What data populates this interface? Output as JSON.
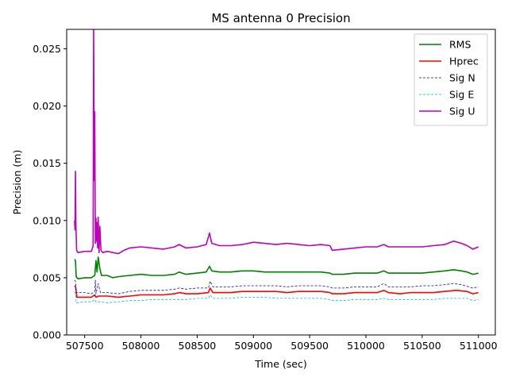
{
  "chart_data": {
    "type": "line",
    "title": "MS antenna 0 Precision",
    "xlabel": "Time (sec)",
    "ylabel": "Precision (m)",
    "xlim": [
      507340,
      511150
    ],
    "ylim": [
      0,
      0.0267
    ],
    "x_ticks": [
      {
        "value": 507500,
        "label": "507500"
      },
      {
        "value": 508000,
        "label": "508000"
      },
      {
        "value": 508500,
        "label": "508500"
      },
      {
        "value": 509000,
        "label": "509000"
      },
      {
        "value": 509500,
        "label": "509500"
      },
      {
        "value": 510000,
        "label": "510000"
      },
      {
        "value": 510500,
        "label": "510500"
      },
      {
        "value": 511000,
        "label": "511000"
      }
    ],
    "y_ticks": [
      {
        "value": 0.0,
        "label": "0.000"
      },
      {
        "value": 0.005,
        "label": "0.005"
      },
      {
        "value": 0.01,
        "label": "0.010"
      },
      {
        "value": 0.015,
        "label": "0.015"
      },
      {
        "value": 0.02,
        "label": "0.020"
      },
      {
        "value": 0.025,
        "label": "0.025"
      }
    ],
    "grid": false,
    "legend_position": "top-right",
    "series": [
      {
        "name": "RMS",
        "color": "#008000",
        "dash": "solid",
        "points": [
          [
            507410,
            0.0066
          ],
          [
            507418,
            0.0065
          ],
          [
            507425,
            0.0051
          ],
          [
            507440,
            0.0049
          ],
          [
            507500,
            0.005
          ],
          [
            507560,
            0.005
          ],
          [
            507590,
            0.0052
          ],
          [
            507600,
            0.0065
          ],
          [
            507610,
            0.0055
          ],
          [
            507620,
            0.0068
          ],
          [
            507635,
            0.0058
          ],
          [
            507650,
            0.0052
          ],
          [
            507700,
            0.0052
          ],
          [
            507750,
            0.005
          ],
          [
            507800,
            0.0051
          ],
          [
            507900,
            0.0052
          ],
          [
            508000,
            0.0053
          ],
          [
            508100,
            0.0052
          ],
          [
            508200,
            0.0052
          ],
          [
            508300,
            0.0053
          ],
          [
            508340,
            0.0055
          ],
          [
            508400,
            0.0053
          ],
          [
            508500,
            0.0054
          ],
          [
            508580,
            0.0055
          ],
          [
            508610,
            0.006
          ],
          [
            508630,
            0.0056
          ],
          [
            508700,
            0.0055
          ],
          [
            508800,
            0.0055
          ],
          [
            508900,
            0.0056
          ],
          [
            509000,
            0.0056
          ],
          [
            509100,
            0.0055
          ],
          [
            509200,
            0.0055
          ],
          [
            509300,
            0.0055
          ],
          [
            509400,
            0.0055
          ],
          [
            509500,
            0.0055
          ],
          [
            509600,
            0.0055
          ],
          [
            509680,
            0.0054
          ],
          [
            509700,
            0.0053
          ],
          [
            509800,
            0.0053
          ],
          [
            509900,
            0.0054
          ],
          [
            510000,
            0.0054
          ],
          [
            510100,
            0.0054
          ],
          [
            510160,
            0.0056
          ],
          [
            510200,
            0.0054
          ],
          [
            510300,
            0.0054
          ],
          [
            510400,
            0.0054
          ],
          [
            510500,
            0.0054
          ],
          [
            510600,
            0.0055
          ],
          [
            510700,
            0.0056
          ],
          [
            510780,
            0.0057
          ],
          [
            510850,
            0.0056
          ],
          [
            510900,
            0.0055
          ],
          [
            510950,
            0.0053
          ],
          [
            511000,
            0.0054
          ]
        ]
      },
      {
        "name": "Hprec",
        "color": "#ff0000",
        "dash": "solid",
        "points": [
          [
            507410,
            0.0043
          ],
          [
            507420,
            0.0042
          ],
          [
            507430,
            0.0033
          ],
          [
            507500,
            0.0033
          ],
          [
            507560,
            0.0033
          ],
          [
            507590,
            0.0035
          ],
          [
            507600,
            0.0033
          ],
          [
            507630,
            0.0034
          ],
          [
            507700,
            0.0034
          ],
          [
            507800,
            0.0033
          ],
          [
            507900,
            0.0034
          ],
          [
            508000,
            0.0035
          ],
          [
            508100,
            0.0035
          ],
          [
            508200,
            0.0035
          ],
          [
            508300,
            0.0036
          ],
          [
            508340,
            0.0037
          ],
          [
            508400,
            0.0036
          ],
          [
            508500,
            0.0036
          ],
          [
            508600,
            0.0037
          ],
          [
            508615,
            0.0041
          ],
          [
            508640,
            0.0037
          ],
          [
            508700,
            0.0037
          ],
          [
            508800,
            0.0037
          ],
          [
            508900,
            0.0038
          ],
          [
            509000,
            0.0038
          ],
          [
            509100,
            0.0038
          ],
          [
            509200,
            0.0038
          ],
          [
            509300,
            0.0037
          ],
          [
            509400,
            0.0038
          ],
          [
            509500,
            0.0038
          ],
          [
            509600,
            0.0038
          ],
          [
            509680,
            0.0037
          ],
          [
            509700,
            0.0036
          ],
          [
            509800,
            0.0036
          ],
          [
            509900,
            0.0037
          ],
          [
            510000,
            0.0037
          ],
          [
            510100,
            0.0037
          ],
          [
            510160,
            0.0039
          ],
          [
            510200,
            0.0037
          ],
          [
            510300,
            0.0036
          ],
          [
            510400,
            0.0037
          ],
          [
            510500,
            0.0037
          ],
          [
            510600,
            0.0037
          ],
          [
            510700,
            0.0038
          ],
          [
            510800,
            0.0039
          ],
          [
            510900,
            0.0038
          ],
          [
            510950,
            0.0036
          ],
          [
            511000,
            0.0037
          ]
        ]
      },
      {
        "name": "Sig N",
        "color": "#0000ff",
        "dash": "dashed",
        "points": [
          [
            507410,
            0.0048
          ],
          [
            507418,
            0.0047
          ],
          [
            507425,
            0.0037
          ],
          [
            507500,
            0.0037
          ],
          [
            507560,
            0.0036
          ],
          [
            507590,
            0.0038
          ],
          [
            507595,
            0.0048
          ],
          [
            507600,
            0.0036
          ],
          [
            507620,
            0.0045
          ],
          [
            507640,
            0.0037
          ],
          [
            507700,
            0.0037
          ],
          [
            507800,
            0.0036
          ],
          [
            507900,
            0.0038
          ],
          [
            508000,
            0.0039
          ],
          [
            508100,
            0.0039
          ],
          [
            508200,
            0.0039
          ],
          [
            508300,
            0.004
          ],
          [
            508340,
            0.0041
          ],
          [
            508400,
            0.004
          ],
          [
            508500,
            0.0041
          ],
          [
            508600,
            0.0041
          ],
          [
            508615,
            0.0047
          ],
          [
            508640,
            0.0042
          ],
          [
            508700,
            0.0042
          ],
          [
            508800,
            0.0042
          ],
          [
            508900,
            0.0043
          ],
          [
            509000,
            0.0043
          ],
          [
            509100,
            0.0043
          ],
          [
            509200,
            0.0043
          ],
          [
            509300,
            0.0042
          ],
          [
            509400,
            0.0043
          ],
          [
            509500,
            0.0043
          ],
          [
            509600,
            0.0043
          ],
          [
            509680,
            0.0042
          ],
          [
            509700,
            0.0041
          ],
          [
            509800,
            0.0041
          ],
          [
            509900,
            0.0042
          ],
          [
            510000,
            0.0042
          ],
          [
            510100,
            0.0042
          ],
          [
            510160,
            0.0045
          ],
          [
            510200,
            0.0042
          ],
          [
            510300,
            0.0042
          ],
          [
            510400,
            0.0042
          ],
          [
            510500,
            0.0043
          ],
          [
            510600,
            0.0043
          ],
          [
            510700,
            0.0044
          ],
          [
            510780,
            0.0045
          ],
          [
            510850,
            0.0044
          ],
          [
            510950,
            0.0041
          ],
          [
            511000,
            0.0042
          ]
        ]
      },
      {
        "name": "Sig E",
        "color": "#00bfbf",
        "dash": "dashed",
        "points": [
          [
            507410,
            0.0038
          ],
          [
            507418,
            0.0036
          ],
          [
            507425,
            0.0028
          ],
          [
            507500,
            0.0029
          ],
          [
            507560,
            0.0029
          ],
          [
            507590,
            0.0031
          ],
          [
            507600,
            0.0029
          ],
          [
            507640,
            0.0029
          ],
          [
            507700,
            0.0028
          ],
          [
            507800,
            0.0029
          ],
          [
            507900,
            0.003
          ],
          [
            508000,
            0.003
          ],
          [
            508100,
            0.0031
          ],
          [
            508200,
            0.0031
          ],
          [
            508300,
            0.0031
          ],
          [
            508400,
            0.0031
          ],
          [
            508500,
            0.0032
          ],
          [
            508600,
            0.0032
          ],
          [
            508615,
            0.0035
          ],
          [
            508640,
            0.0032
          ],
          [
            508700,
            0.0032
          ],
          [
            508800,
            0.0032
          ],
          [
            508900,
            0.0033
          ],
          [
            509000,
            0.0033
          ],
          [
            509100,
            0.0033
          ],
          [
            509200,
            0.0032
          ],
          [
            509300,
            0.0032
          ],
          [
            509400,
            0.0032
          ],
          [
            509500,
            0.0032
          ],
          [
            509600,
            0.0032
          ],
          [
            509680,
            0.0031
          ],
          [
            509700,
            0.003
          ],
          [
            509800,
            0.003
          ],
          [
            509900,
            0.0031
          ],
          [
            510000,
            0.0031
          ],
          [
            510100,
            0.0031
          ],
          [
            510160,
            0.0032
          ],
          [
            510200,
            0.0031
          ],
          [
            510300,
            0.0031
          ],
          [
            510400,
            0.0031
          ],
          [
            510500,
            0.0031
          ],
          [
            510600,
            0.0031
          ],
          [
            510700,
            0.0032
          ],
          [
            510800,
            0.0032
          ],
          [
            510900,
            0.0032
          ],
          [
            510950,
            0.003
          ],
          [
            511000,
            0.0031
          ]
        ]
      },
      {
        "name": "Sig U",
        "color": "#bf00bf",
        "dash": "solid",
        "points": [
          [
            507410,
            0.01
          ],
          [
            507414,
            0.0092
          ],
          [
            507418,
            0.0143
          ],
          [
            507422,
            0.0098
          ],
          [
            507428,
            0.0074
          ],
          [
            507440,
            0.0072
          ],
          [
            507500,
            0.0073
          ],
          [
            507560,
            0.0073
          ],
          [
            507575,
            0.0078
          ],
          [
            507580,
            0.027
          ],
          [
            507585,
            0.0135
          ],
          [
            507590,
            0.0195
          ],
          [
            507595,
            0.008
          ],
          [
            507600,
            0.0102
          ],
          [
            507605,
            0.0082
          ],
          [
            507610,
            0.0098
          ],
          [
            507615,
            0.0076
          ],
          [
            507620,
            0.0103
          ],
          [
            507628,
            0.0072
          ],
          [
            507635,
            0.0095
          ],
          [
            507645,
            0.0074
          ],
          [
            507660,
            0.0072
          ],
          [
            507700,
            0.0073
          ],
          [
            507750,
            0.0072
          ],
          [
            507800,
            0.0071
          ],
          [
            507850,
            0.0074
          ],
          [
            507900,
            0.0076
          ],
          [
            508000,
            0.0077
          ],
          [
            508100,
            0.0076
          ],
          [
            508200,
            0.0075
          ],
          [
            508300,
            0.0077
          ],
          [
            508340,
            0.0079
          ],
          [
            508400,
            0.0076
          ],
          [
            508500,
            0.0077
          ],
          [
            508580,
            0.0079
          ],
          [
            508610,
            0.0089
          ],
          [
            508630,
            0.008
          ],
          [
            508700,
            0.0078
          ],
          [
            508800,
            0.0078
          ],
          [
            508900,
            0.0079
          ],
          [
            509000,
            0.0081
          ],
          [
            509100,
            0.008
          ],
          [
            509200,
            0.0079
          ],
          [
            509300,
            0.008
          ],
          [
            509400,
            0.0079
          ],
          [
            509500,
            0.0078
          ],
          [
            509600,
            0.0079
          ],
          [
            509680,
            0.0078
          ],
          [
            509700,
            0.0074
          ],
          [
            509800,
            0.0075
          ],
          [
            509900,
            0.0076
          ],
          [
            510000,
            0.0077
          ],
          [
            510100,
            0.0077
          ],
          [
            510160,
            0.0079
          ],
          [
            510200,
            0.0077
          ],
          [
            510300,
            0.0077
          ],
          [
            510400,
            0.0077
          ],
          [
            510500,
            0.0077
          ],
          [
            510600,
            0.0078
          ],
          [
            510700,
            0.0079
          ],
          [
            510780,
            0.0082
          ],
          [
            510850,
            0.008
          ],
          [
            510900,
            0.0078
          ],
          [
            510950,
            0.0075
          ],
          [
            511000,
            0.0077
          ]
        ]
      }
    ]
  }
}
